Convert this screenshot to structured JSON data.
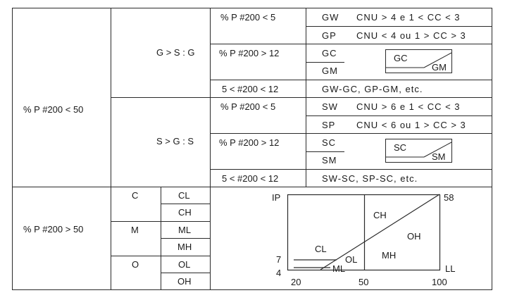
{
  "gravel_sand": {
    "main_label": "% P #200 < 50",
    "gravel": {
      "label": "G > S : G",
      "fines_low": "% P #200 < 5",
      "fines_high": "% P #200 > 12",
      "dual": "5 < #200 < 12",
      "gw": "GW",
      "gw_rule": "CNU > 4 e 1 < CC < 3",
      "gp": "GP",
      "gp_rule": "CNU < 4 ou 1 > CC > 3",
      "gc": "GC",
      "gm": "GM",
      "box_upper": "GC",
      "box_lower": "GM",
      "dual_symbols": "GW-GC, GP-GM, etc."
    },
    "sand": {
      "label": "S > G : S",
      "fines_low": "% P #200 < 5",
      "fines_high": "% P #200 > 12",
      "dual": "5 < #200 < 12",
      "sw": "SW",
      "sw_rule": "CNU > 6 e 1 < CC < 3",
      "sp": "SP",
      "sp_rule": "CNU < 6 ou 1 > CC > 3",
      "sc": "SC",
      "sm": "SM",
      "box_upper": "SC",
      "box_lower": "SM",
      "dual_symbols": "SW-SC, SP-SC, etc."
    }
  },
  "fine": {
    "main_label": "% P #200 > 50",
    "types": [
      "C",
      "M",
      "O"
    ],
    "symbols": [
      "CL",
      "CH",
      "ML",
      "MH",
      "OL",
      "OH"
    ]
  },
  "plasticity_chart": {
    "y_axis_label": "IP",
    "x_axis_label": "LL",
    "y_ticks": [
      "7",
      "4"
    ],
    "top_right_value": "58",
    "x_ticks": [
      "20",
      "50",
      "100"
    ],
    "zones": [
      "CL",
      "CH",
      "OH",
      "MH",
      "OL",
      "ML"
    ]
  }
}
